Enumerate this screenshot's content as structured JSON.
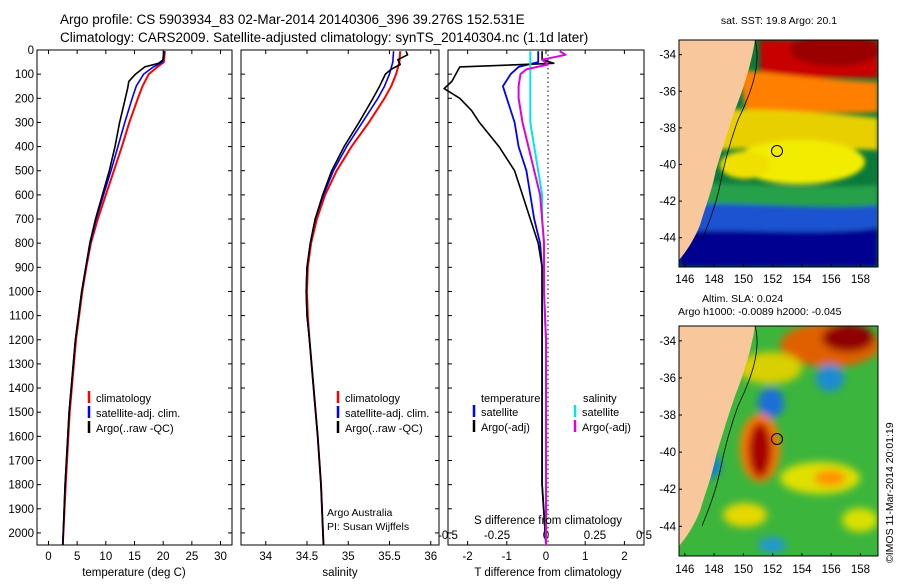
{
  "header": {
    "line1": "Argo profile: CS 5903934_83 02-Mar-2014 20140306_396 39.276S 152.531E",
    "line2": "Climatology: CARS2009. Satellite-adjusted climatology: synTS_20140304.nc (1.1d later)"
  },
  "colors": {
    "climatology": "#ff0000",
    "satellite": "#0000ff",
    "argo": "#000000",
    "cyan": "#00e5ee",
    "magenta": "#e000e0",
    "land": "#f9c79c"
  },
  "chart_data": [
    {
      "type": "line",
      "xlabel": "temperature (deg C)",
      "xlim": [
        -2,
        32
      ],
      "ylim": [
        0,
        2050
      ],
      "xticks": [
        "0",
        "5",
        "10",
        "15",
        "20",
        "25",
        "30"
      ],
      "yticks": [
        "0",
        "100",
        "200",
        "300",
        "400",
        "500",
        "600",
        "700",
        "800",
        "900",
        "1000",
        "1100",
        "1200",
        "1300",
        "1400",
        "1500",
        "1600",
        "1700",
        "1800",
        "1900",
        "2000"
      ],
      "legend": [
        "climatology",
        "satellite-adj. clim.",
        "Argo(..raw -QC)"
      ],
      "series": [
        {
          "name": "climatology",
          "depth": [
            5,
            50,
            70,
            100,
            150,
            200,
            300,
            400,
            500,
            600,
            700,
            800,
            900,
            1000,
            1200,
            1500,
            1800,
            2050
          ],
          "values": [
            20.3,
            20.1,
            19.0,
            17.5,
            16.4,
            15.6,
            14.1,
            12.8,
            11.4,
            10.0,
            8.6,
            7.4,
            6.6,
            5.9,
            4.8,
            3.7,
            3.0,
            2.5
          ]
        },
        {
          "name": "satellite-adj. clim.",
          "depth": [
            5,
            50,
            70,
            100,
            150,
            200,
            300,
            400,
            500,
            600,
            700,
            800,
            900,
            1000,
            1200,
            1500,
            1800,
            2050
          ],
          "values": [
            20.1,
            19.9,
            18.3,
            16.6,
            15.3,
            14.6,
            13.3,
            12.1,
            10.9,
            9.6,
            8.3,
            7.3,
            6.5,
            5.8,
            4.7,
            3.6,
            2.9,
            2.5
          ]
        },
        {
          "name": "Argo(..raw -QC)",
          "depth": [
            5,
            40,
            55,
            70,
            100,
            130,
            160,
            200,
            250,
            300,
            400,
            500,
            600,
            700,
            800,
            900,
            1000,
            1200,
            1500,
            1800,
            2050
          ],
          "values": [
            20.2,
            20.0,
            19.2,
            16.8,
            15.2,
            14.0,
            13.8,
            13.4,
            12.9,
            12.4,
            11.6,
            10.6,
            9.4,
            8.2,
            7.2,
            6.5,
            5.8,
            4.7,
            3.6,
            2.9,
            2.5
          ]
        }
      ]
    },
    {
      "type": "line",
      "xlabel": "salinity",
      "xlim": [
        33.7,
        36.1
      ],
      "ylim": [
        0,
        2050
      ],
      "xticks": [
        "34",
        "34.5",
        "35",
        "35.5",
        "36"
      ],
      "legend": [
        "climatology",
        "satellite-adj. clim.",
        "Argo(..raw -QC)"
      ],
      "annotation": [
        "Argo Australia",
        "PI: Susan Wijffels"
      ],
      "series": [
        {
          "name": "climatology",
          "depth": [
            5,
            50,
            100,
            150,
            200,
            300,
            400,
            500,
            600,
            700,
            800,
            900,
            1000,
            1100,
            1200,
            1400,
            1600,
            1800,
            2050
          ],
          "values": [
            35.63,
            35.62,
            35.58,
            35.52,
            35.44,
            35.25,
            35.04,
            34.86,
            34.72,
            34.62,
            34.55,
            34.51,
            34.5,
            34.51,
            34.53,
            34.58,
            34.63,
            34.67,
            34.7
          ]
        },
        {
          "name": "satellite-adj. clim.",
          "depth": [
            5,
            50,
            100,
            150,
            200,
            300,
            400,
            500,
            600,
            700,
            800,
            900,
            1000,
            1100,
            1200,
            1400,
            1600,
            1800,
            2050
          ],
          "values": [
            35.55,
            35.54,
            35.5,
            35.44,
            35.36,
            35.17,
            34.98,
            34.82,
            34.7,
            34.6,
            34.54,
            34.5,
            34.49,
            34.5,
            34.53,
            34.58,
            34.63,
            34.67,
            34.7
          ]
        },
        {
          "name": "Argo(..raw -QC)",
          "depth": [
            5,
            20,
            40,
            60,
            80,
            100,
            150,
            200,
            300,
            400,
            500,
            600,
            700,
            800,
            900,
            1000,
            1100,
            1200,
            1400,
            1600,
            1800,
            2050
          ],
          "values": [
            35.7,
            35.72,
            35.6,
            35.63,
            35.52,
            35.45,
            35.38,
            35.3,
            35.13,
            34.95,
            34.8,
            34.69,
            34.6,
            34.54,
            34.5,
            34.49,
            34.5,
            34.53,
            34.58,
            34.63,
            34.67,
            34.7
          ]
        }
      ]
    },
    {
      "type": "line",
      "xlabel": "T difference from climatology",
      "xlabel_top": "S difference from climatology",
      "xlim": [
        -2.5,
        2.5
      ],
      "ylim": [
        0,
        2050
      ],
      "xticks": [
        "-2",
        "-1",
        "0",
        "1",
        "2"
      ],
      "xticks_top": [
        "-0.5",
        "-0.25",
        "0",
        "0.25",
        "0.5"
      ],
      "legend_title_left": "temperature",
      "legend_title_right": "salinity",
      "legend_left": [
        "satellite",
        "Argo(-adj)"
      ],
      "legend_right": [
        "satellite",
        "Argo(-adj)"
      ],
      "series": [
        {
          "name": "temperature satellite",
          "depth": [
            5,
            50,
            70,
            100,
            150,
            200,
            300,
            400,
            500,
            600,
            700,
            800,
            900,
            1000,
            1200,
            1500,
            1800,
            2050
          ],
          "values": [
            -0.2,
            -0.2,
            -0.7,
            -0.9,
            -1.1,
            -1.0,
            -0.8,
            -0.7,
            -0.5,
            -0.4,
            -0.3,
            -0.15,
            -0.1,
            -0.1,
            -0.1,
            -0.1,
            -0.1,
            0.0
          ]
        },
        {
          "name": "temperature Argo(-adj)",
          "depth": [
            5,
            40,
            55,
            70,
            100,
            130,
            160,
            200,
            250,
            300,
            400,
            500,
            600,
            700,
            800,
            900,
            1000,
            1200,
            1500,
            1800,
            2050
          ],
          "values": [
            -0.1,
            -0.1,
            0.2,
            -2.2,
            -2.3,
            -2.4,
            -2.6,
            -2.2,
            -1.9,
            -1.7,
            -1.2,
            -0.8,
            -0.6,
            -0.4,
            -0.2,
            -0.1,
            -0.1,
            -0.1,
            -0.1,
            -0.1,
            0.0
          ]
        },
        {
          "name": "salinity satellite",
          "depth": [
            5,
            50,
            100,
            150,
            200,
            300,
            400,
            500,
            600,
            700,
            800,
            900,
            1000,
            1200,
            1500,
            1800,
            2050
          ],
          "values": [
            -0.08,
            -0.08,
            -0.08,
            -0.08,
            -0.08,
            -0.08,
            -0.06,
            -0.04,
            -0.02,
            -0.02,
            -0.01,
            -0.01,
            -0.01,
            0.0,
            0.0,
            0.0,
            0.0
          ]
        },
        {
          "name": "salinity Argo(-adj)",
          "depth": [
            5,
            20,
            40,
            60,
            80,
            100,
            150,
            200,
            300,
            400,
            500,
            600,
            700,
            800,
            900,
            1000,
            1200,
            1500,
            1800,
            2050
          ],
          "values": [
            0.07,
            0.1,
            -0.02,
            0.01,
            -0.1,
            -0.13,
            -0.14,
            -0.14,
            -0.12,
            -0.09,
            -0.06,
            -0.03,
            -0.02,
            -0.01,
            -0.01,
            -0.01,
            0.0,
            0.0,
            0.0,
            0.0
          ]
        }
      ]
    },
    {
      "type": "heatmap",
      "title": "sat. SST: 19.8 Argo: 20.1",
      "xticks": [
        "146",
        "148",
        "150",
        "152",
        "154",
        "156",
        "158"
      ],
      "yticks": [
        "-34",
        "-36",
        "-38",
        "-40",
        "-42",
        "-44"
      ],
      "marker": {
        "lon": 152.53,
        "lat": -39.28
      }
    },
    {
      "type": "heatmap",
      "title": "Altim. SLA: 0.024",
      "subtitle": "Argo h1000: -0.0089 h2000: -0.045",
      "xticks": [
        "146",
        "148",
        "150",
        "152",
        "154",
        "156",
        "158"
      ],
      "yticks": [
        "-34",
        "-36",
        "-38",
        "-40",
        "-42",
        "-44"
      ],
      "marker": {
        "lon": 152.53,
        "lat": -39.28
      }
    }
  ],
  "side_label": "©IMOS 11-Mar-2014 20:01:19"
}
